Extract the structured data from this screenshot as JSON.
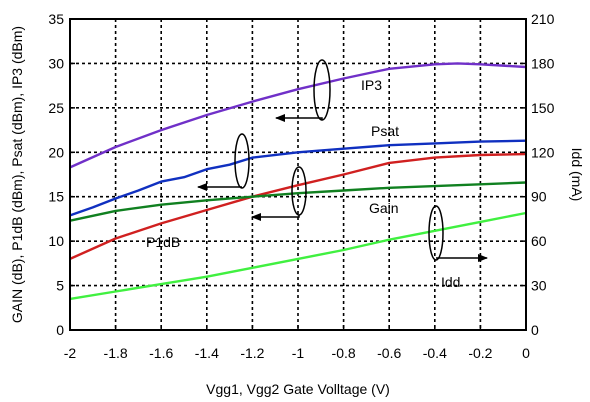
{
  "chart_data": {
    "type": "line",
    "title": "",
    "xlabel": "Vgg1, Vgg2  Gate Volltage (V)",
    "ylabel_left": "GAIN (dB), P1dB (dBm), Psat (dBm), IP3 (dBm)",
    "ylabel_right": "Idd (mA)",
    "xlim": [
      -2,
      0
    ],
    "ylim_left": [
      0,
      35
    ],
    "ylim_right": [
      0,
      210
    ],
    "grid": true,
    "grid_style": "dotted",
    "legend": "none (inline labels with arrows)",
    "x_ticks": [
      -2,
      -1.8,
      -1.6,
      -1.4,
      -1.2,
      -1,
      -0.8,
      -0.6,
      -0.4,
      -0.2,
      0
    ],
    "x_tick_labels": [
      "-2",
      "-1.8",
      "-1.6",
      "-1.4",
      "-1.2",
      "-1",
      "-0.8",
      "-0.6",
      "-0.4",
      "-0.2",
      "0"
    ],
    "y_left_ticks": [
      0,
      5,
      10,
      15,
      20,
      25,
      30,
      35
    ],
    "y_left_tick_labels": [
      "0",
      "5",
      "10",
      "15",
      "20",
      "25",
      "30",
      "35"
    ],
    "y_right_ticks": [
      0,
      30,
      60,
      90,
      120,
      150,
      180,
      210
    ],
    "y_right_tick_labels": [
      "0",
      "30",
      "60",
      "90",
      "120",
      "150",
      "180",
      "210"
    ],
    "series": [
      {
        "name": "IP3",
        "axis": "left",
        "color": "#7030c8",
        "points": [
          [
            -2,
            18.3
          ],
          [
            -1.8,
            20.6
          ],
          [
            -1.6,
            22.5
          ],
          [
            -1.4,
            24.2
          ],
          [
            -1.2,
            25.7
          ],
          [
            -1.0,
            27.1
          ],
          [
            -0.8,
            28.3
          ],
          [
            -0.6,
            29.4
          ],
          [
            -0.4,
            29.9
          ],
          [
            -0.3,
            30.0
          ],
          [
            -0.2,
            29.9
          ],
          [
            0,
            29.6
          ]
        ]
      },
      {
        "name": "Psat",
        "axis": "left",
        "color": "#1030c0",
        "points": [
          [
            -2,
            12.9
          ],
          [
            -1.9,
            13.8
          ],
          [
            -1.8,
            14.8
          ],
          [
            -1.7,
            15.7
          ],
          [
            -1.6,
            16.7
          ],
          [
            -1.5,
            17.2
          ],
          [
            -1.4,
            18.1
          ],
          [
            -1.3,
            18.6
          ],
          [
            -1.2,
            19.4
          ],
          [
            -1.0,
            20.0
          ],
          [
            -0.8,
            20.4
          ],
          [
            -0.6,
            20.8
          ],
          [
            -0.4,
            21.0
          ],
          [
            -0.2,
            21.2
          ],
          [
            0,
            21.3
          ]
        ]
      },
      {
        "name": "P1dB",
        "axis": "left",
        "color": "#d02020",
        "points": [
          [
            -2,
            8.0
          ],
          [
            -1.8,
            10.3
          ],
          [
            -1.6,
            12.0
          ],
          [
            -1.4,
            13.5
          ],
          [
            -1.2,
            15.0
          ],
          [
            -1.0,
            16.3
          ],
          [
            -0.8,
            17.5
          ],
          [
            -0.6,
            18.8
          ],
          [
            -0.4,
            19.4
          ],
          [
            -0.2,
            19.7
          ],
          [
            0,
            19.8
          ]
        ]
      },
      {
        "name": "Gain",
        "axis": "left",
        "color": "#108020",
        "points": [
          [
            -2,
            12.3
          ],
          [
            -1.8,
            13.4
          ],
          [
            -1.6,
            14.1
          ],
          [
            -1.4,
            14.6
          ],
          [
            -1.2,
            15.0
          ],
          [
            -1.0,
            15.4
          ],
          [
            -0.8,
            15.7
          ],
          [
            -0.6,
            16.0
          ],
          [
            -0.4,
            16.2
          ],
          [
            -0.2,
            16.4
          ],
          [
            0,
            16.6
          ]
        ]
      },
      {
        "name": "Idd",
        "axis": "right",
        "color": "#40f040",
        "points": [
          [
            -2,
            21
          ],
          [
            -1.8,
            26
          ],
          [
            -1.6,
            31
          ],
          [
            -1.4,
            36
          ],
          [
            -1.2,
            42
          ],
          [
            -1.0,
            48
          ],
          [
            -0.8,
            54
          ],
          [
            -0.6,
            61
          ],
          [
            -0.4,
            67
          ],
          [
            -0.2,
            73
          ],
          [
            0,
            79
          ]
        ]
      }
    ],
    "labels": [
      {
        "name": "IP3",
        "text": "IP3"
      },
      {
        "name": "Psat",
        "text": "Psat"
      },
      {
        "name": "Gain",
        "text": "Gain"
      },
      {
        "name": "P1dB",
        "text": "P1dB"
      },
      {
        "name": "Idd",
        "text": "Idd"
      }
    ]
  }
}
